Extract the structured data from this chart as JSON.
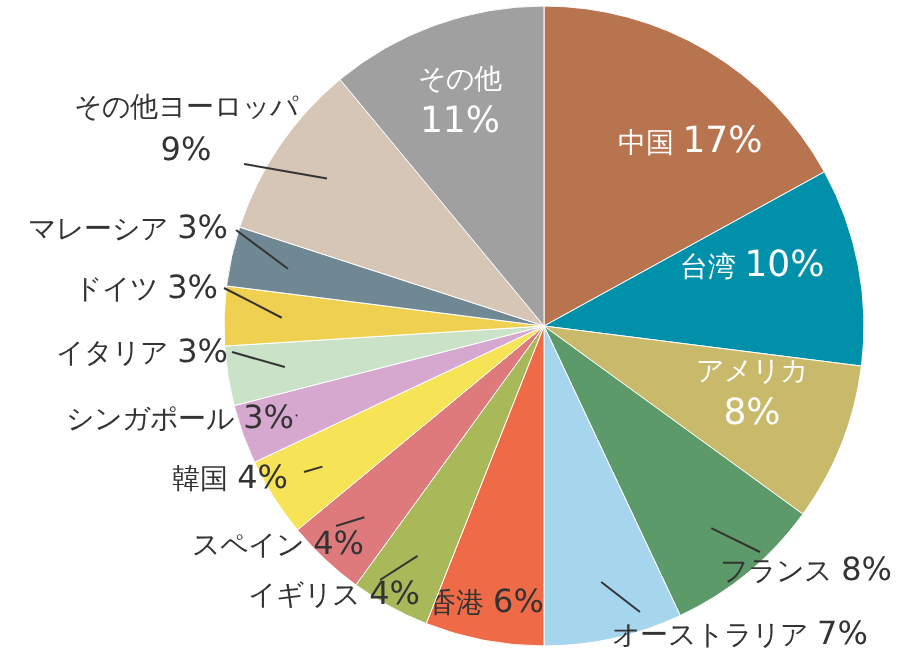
{
  "chart_data": {
    "type": "pie",
    "categories": [
      "中国",
      "台湾",
      "アメリカ",
      "フランス",
      "オーストラリア",
      "香港",
      "イギリス",
      "スペイン",
      "韓国",
      "シンガポール",
      "イタリア",
      "ドイツ",
      "マレーシア",
      "その他ヨーロッパ",
      "その他"
    ],
    "values": [
      17,
      10,
      8,
      8,
      7,
      6,
      4,
      4,
      4,
      3,
      3,
      3,
      3,
      9,
      11
    ],
    "value_labels": [
      "17%",
      "10%",
      "8%",
      "8%",
      "7%",
      "6%",
      "4%",
      "4%",
      "4%",
      "3%",
      "3%",
      "3%",
      "3%",
      "9%",
      "11%"
    ],
    "colors": [
      "#b8744f",
      "#0090aa",
      "#c9b96a",
      "#5c9a6a",
      "#a6d6ee",
      "#ef6b47",
      "#a9b95a",
      "#de7a7c",
      "#f6e356",
      "#d6a7cf",
      "#c9e2c8",
      "#efd051",
      "#6f8893",
      "#d6c6b6",
      "#a0a0a0"
    ]
  }
}
